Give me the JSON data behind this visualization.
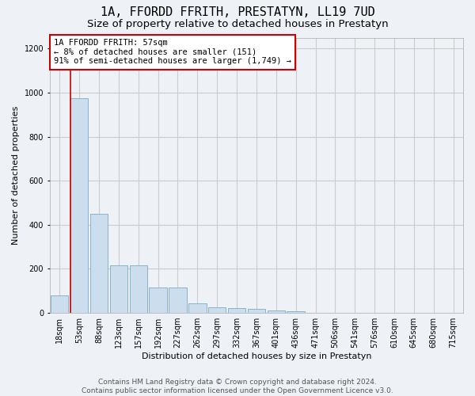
{
  "title": "1A, FFORDD FFRITH, PRESTATYN, LL19 7UD",
  "subtitle": "Size of property relative to detached houses in Prestatyn",
  "xlabel": "Distribution of detached houses by size in Prestatyn",
  "ylabel": "Number of detached properties",
  "bar_color": "#ccdded",
  "bar_edge_color": "#7aaac8",
  "categories": [
    "18sqm",
    "53sqm",
    "88sqm",
    "123sqm",
    "157sqm",
    "192sqm",
    "227sqm",
    "262sqm",
    "297sqm",
    "332sqm",
    "367sqm",
    "401sqm",
    "436sqm",
    "471sqm",
    "506sqm",
    "541sqm",
    "576sqm",
    "610sqm",
    "645sqm",
    "680sqm",
    "715sqm"
  ],
  "values": [
    80,
    975,
    450,
    215,
    215,
    115,
    115,
    45,
    25,
    22,
    20,
    12,
    8,
    0,
    0,
    0,
    0,
    0,
    0,
    0,
    0
  ],
  "ylim": [
    0,
    1250
  ],
  "yticks": [
    0,
    200,
    400,
    600,
    800,
    1000,
    1200
  ],
  "property_line_bar_index": 1,
  "annotation_line1": "1A FFORDD FFRITH: 57sqm",
  "annotation_line2": "← 8% of detached houses are smaller (151)",
  "annotation_line3": "91% of semi-detached houses are larger (1,749) →",
  "annotation_box_color": "#ffffff",
  "annotation_border_color": "#cc0000",
  "property_line_color": "#cc0000",
  "grid_color": "#cccccc",
  "background_color": "#eef2f7",
  "footer_text": "Contains HM Land Registry data © Crown copyright and database right 2024.\nContains public sector information licensed under the Open Government Licence v3.0.",
  "title_fontsize": 11,
  "subtitle_fontsize": 9.5,
  "axis_label_fontsize": 8,
  "tick_fontsize": 7,
  "annotation_fontsize": 7.5,
  "footer_fontsize": 6.5
}
